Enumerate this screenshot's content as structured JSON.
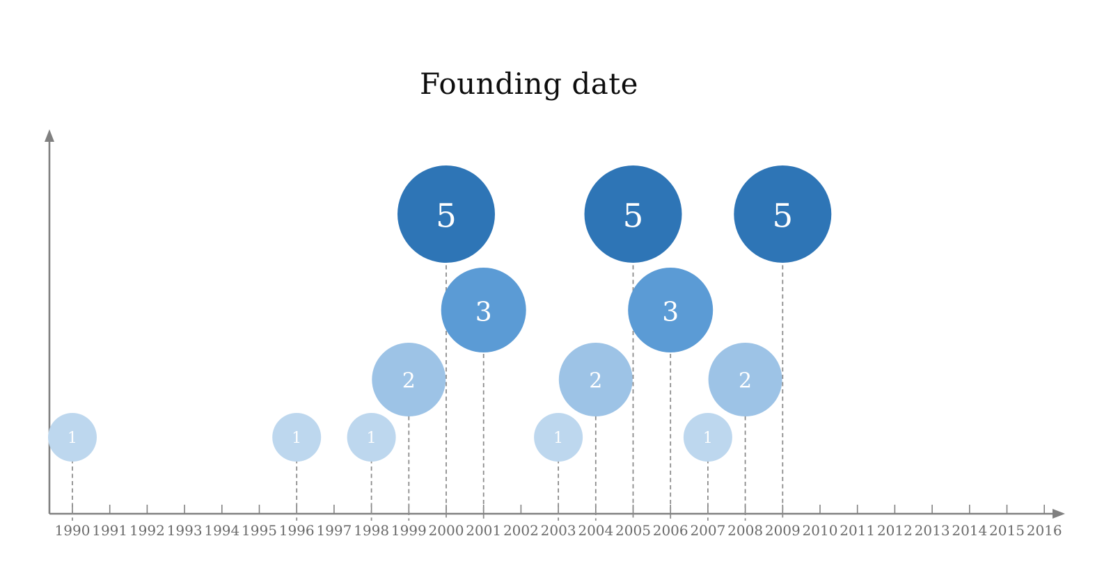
{
  "chart_data": {
    "type": "bubble",
    "title": "Founding date",
    "xlabel": "",
    "ylabel": "",
    "x_range": [
      1990,
      2016
    ],
    "x_ticks": [
      1990,
      1991,
      1992,
      1993,
      1994,
      1995,
      1996,
      1997,
      1998,
      1999,
      2000,
      2001,
      2002,
      2003,
      2004,
      2005,
      2006,
      2007,
      2008,
      2009,
      2010,
      2011,
      2012,
      2013,
      2014,
      2015,
      2016
    ],
    "points": [
      {
        "x": 1990,
        "count": 1
      },
      {
        "x": 1996,
        "count": 1
      },
      {
        "x": 1998,
        "count": 1
      },
      {
        "x": 1999,
        "count": 2
      },
      {
        "x": 2000,
        "count": 5
      },
      {
        "x": 2001,
        "count": 3
      },
      {
        "x": 2003,
        "count": 1
      },
      {
        "x": 2004,
        "count": 2
      },
      {
        "x": 2005,
        "count": 5
      },
      {
        "x": 2006,
        "count": 3
      },
      {
        "x": 2007,
        "count": 1
      },
      {
        "x": 2008,
        "count": 2
      },
      {
        "x": 2009,
        "count": 5
      }
    ],
    "bubble_label": "count",
    "colors_by_count": {
      "1": "#bdd7ee",
      "2": "#9dc3e6",
      "3": "#5b9bd5",
      "5": "#2e75b6"
    },
    "bubble_text_color": "#ffffff",
    "axis_color": "#808080",
    "tick_label_color": "#6a6a6a",
    "leader_line_color": "#8c8c8c",
    "title_color": "#0d0d0d",
    "grid": false,
    "legend": false
  }
}
